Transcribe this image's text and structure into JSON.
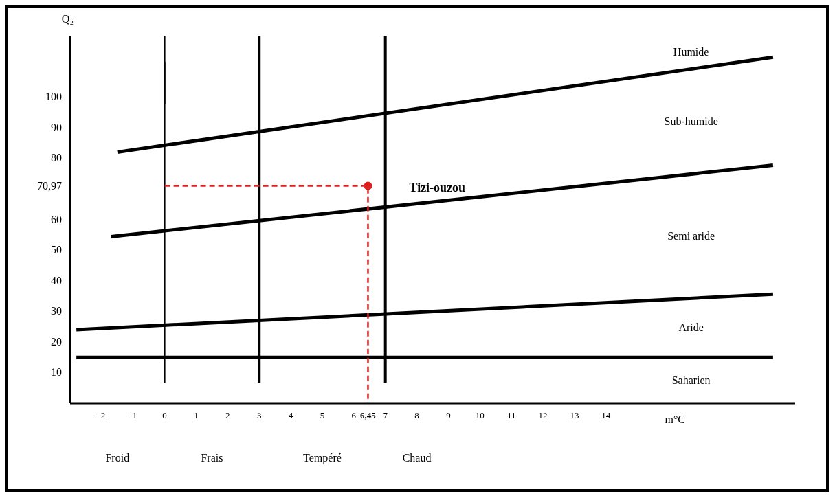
{
  "chart_data": {
    "type": "line",
    "xlabel": "m°C",
    "ylabel": "Q₂",
    "xlim": [
      -3,
      20
    ],
    "ylim": [
      0,
      120
    ],
    "xticks": [
      -2,
      -1,
      0,
      1,
      2,
      3,
      4,
      5,
      6,
      {
        "value": 6.45,
        "label": "6,45"
      },
      7,
      8,
      9,
      10,
      11,
      12,
      13,
      14
    ],
    "yticks": [
      10,
      20,
      30,
      40,
      50,
      60,
      {
        "value": 70.97,
        "label": "70,97"
      },
      80,
      90,
      100
    ],
    "marker": "none",
    "series": [
      {
        "x": [
          -1.5,
          19.3
        ],
        "values": [
          82,
          113
        ],
        "color": "#000000"
      },
      {
        "x": [
          -1.7,
          19.3
        ],
        "values": [
          54.4,
          77.7
        ],
        "color": "#000000"
      },
      {
        "x": [
          -2.8,
          19.3
        ],
        "values": [
          24,
          35.6
        ],
        "color": "#000000"
      },
      {
        "x": [
          -2.8,
          19.3
        ],
        "values": [
          15,
          15
        ],
        "color": "#000000"
      },
      {
        "x": [
          0,
          6.45,
          6.45
        ],
        "values": [
          70.97,
          70.97,
          0
        ],
        "color": "#e02020",
        "line_style": "dashed"
      },
      {
        "type": "scatter",
        "name": "Tizi-ouzou",
        "x": [
          6.45
        ],
        "values": [
          70.97
        ],
        "color": "#e02020",
        "marker": "circle"
      }
    ],
    "ref_lines": [
      {
        "axis": "x",
        "value": 0,
        "color": "#000000"
      },
      {
        "axis": "x",
        "value": 3,
        "color": "#000000"
      },
      {
        "axis": "x",
        "value": 7,
        "color": "#000000"
      }
    ],
    "annotations": [
      "Humide",
      "Sub-humide",
      "Semi aride",
      "Aride",
      "Saharien",
      "Froid",
      "Frais",
      "Tempéré",
      "Chaud"
    ]
  }
}
